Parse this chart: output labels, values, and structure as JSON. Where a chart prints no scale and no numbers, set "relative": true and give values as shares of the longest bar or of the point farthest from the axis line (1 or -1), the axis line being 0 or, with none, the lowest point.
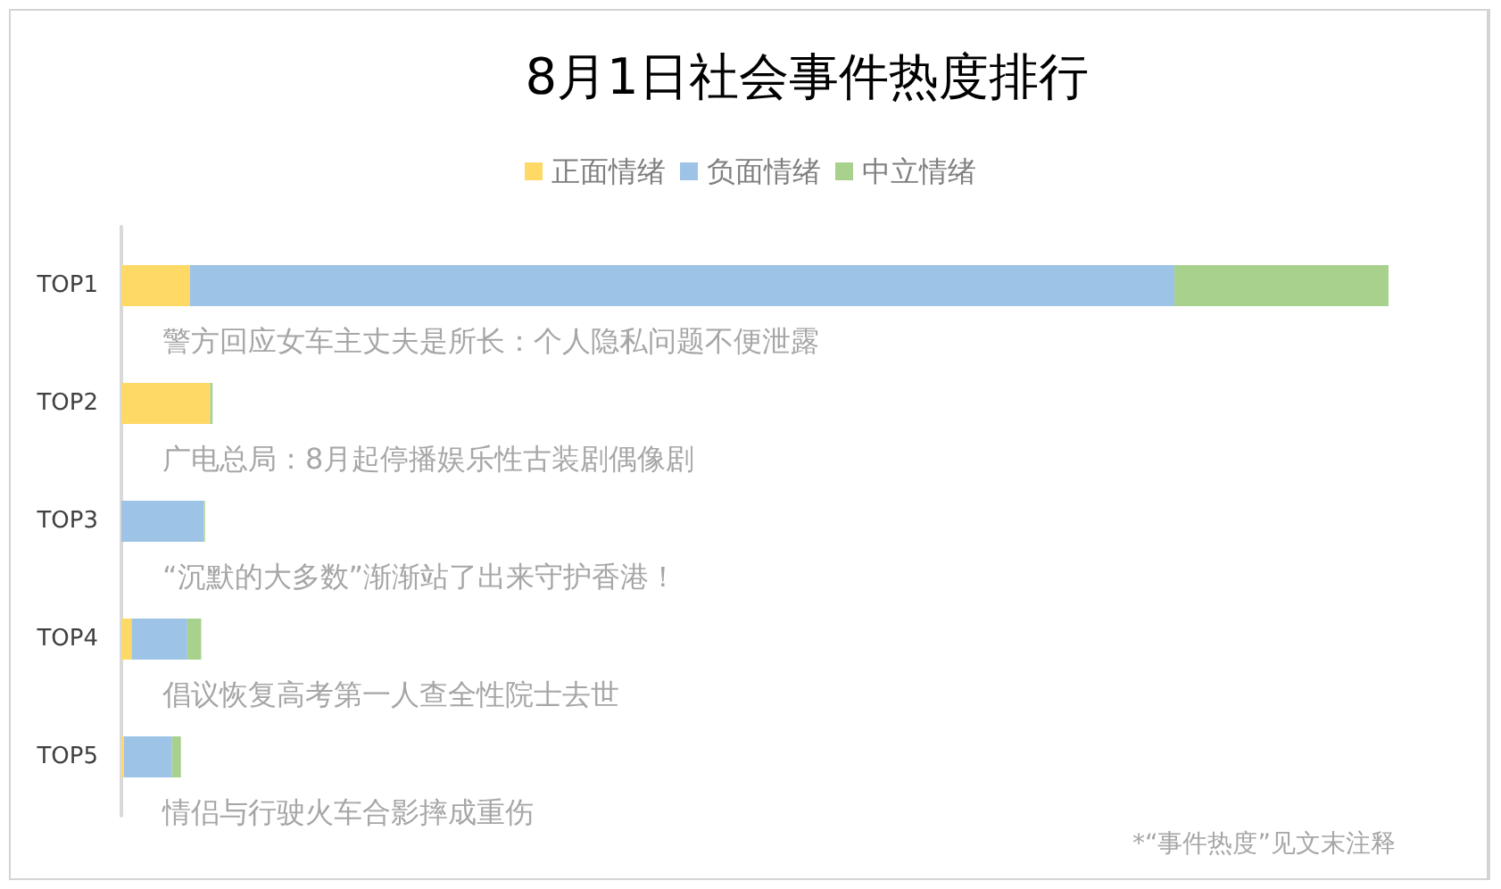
{
  "chart_data": {
    "type": "bar",
    "orientation": "horizontal",
    "stacked": true,
    "relative": true,
    "title": "8月1日社会事件热度排行",
    "categories": [
      "TOP1",
      "TOP2",
      "TOP3",
      "TOP4",
      "TOP5"
    ],
    "series": [
      {
        "name": "正面情绪",
        "color": "#ffd966",
        "values": [
          0.054,
          0.07,
          0,
          0.008,
          0.002
        ]
      },
      {
        "name": "负面情绪",
        "color": "#9dc3e6",
        "values": [
          0.777,
          0,
          0.065,
          0.044,
          0.038
        ]
      },
      {
        "name": "中立情绪",
        "color": "#a9d18e",
        "values": [
          0.169,
          0.002,
          0.001,
          0.011,
          0.007
        ]
      }
    ],
    "legend": "top",
    "annotations": [
      "警方回应女车主丈夫是所长：个人隐私问题不便泄露",
      "广电总局：8月起停播娱乐性古装剧偶像剧",
      "“沉默的大多数”渐渐站了出来守护香港！",
      "倡议恢复高考第一人查全性院士去世",
      "情侣与行驶火车合影摔成重伤",
      "*“事件热度”见文末注释"
    ]
  }
}
